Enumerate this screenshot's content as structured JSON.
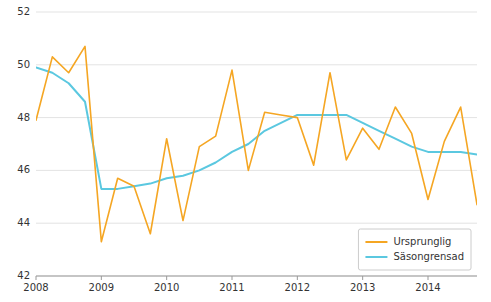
{
  "chart_data": {
    "type": "line",
    "x": [
      2008,
      2008.25,
      2008.5,
      2008.75,
      2009,
      2009.25,
      2009.5,
      2009.75,
      2010,
      2010.25,
      2010.5,
      2010.75,
      2011,
      2011.25,
      2011.5,
      2011.75,
      2012,
      2012.25,
      2012.5,
      2012.75,
      2013,
      2013.25,
      2013.5,
      2013.75,
      2014,
      2014.25,
      2014.5,
      2014.75
    ],
    "series": [
      {
        "name": "Ursprunglig",
        "color": "#f5a623",
        "values": [
          47.9,
          50.3,
          49.7,
          50.7,
          43.3,
          45.7,
          45.4,
          43.6,
          47.2,
          44.1,
          46.9,
          47.3,
          49.8,
          46.0,
          48.2,
          48.1,
          48.0,
          46.2,
          49.7,
          46.4,
          47.6,
          46.8,
          48.4,
          47.4,
          44.9,
          47.1,
          48.4,
          44.7
        ]
      },
      {
        "name": "Säsongrensad",
        "color": "#5bc8e0",
        "values": [
          49.9,
          49.7,
          49.3,
          48.6,
          45.3,
          45.3,
          45.4,
          45.5,
          45.7,
          45.8,
          46.0,
          46.3,
          46.7,
          47.0,
          47.5,
          47.8,
          48.1,
          48.1,
          48.1,
          48.1,
          47.8,
          47.5,
          47.2,
          46.9,
          46.7,
          46.7,
          46.7,
          46.6
        ]
      }
    ],
    "xlim": [
      2008.0,
      2014.75
    ],
    "ylim": [
      42,
      52
    ],
    "xticks": [
      2008,
      2009,
      2010,
      2011,
      2012,
      2013,
      2014
    ],
    "yticks": [
      42,
      44,
      46,
      48,
      50,
      52
    ],
    "grid": true,
    "legend": "lower right"
  }
}
